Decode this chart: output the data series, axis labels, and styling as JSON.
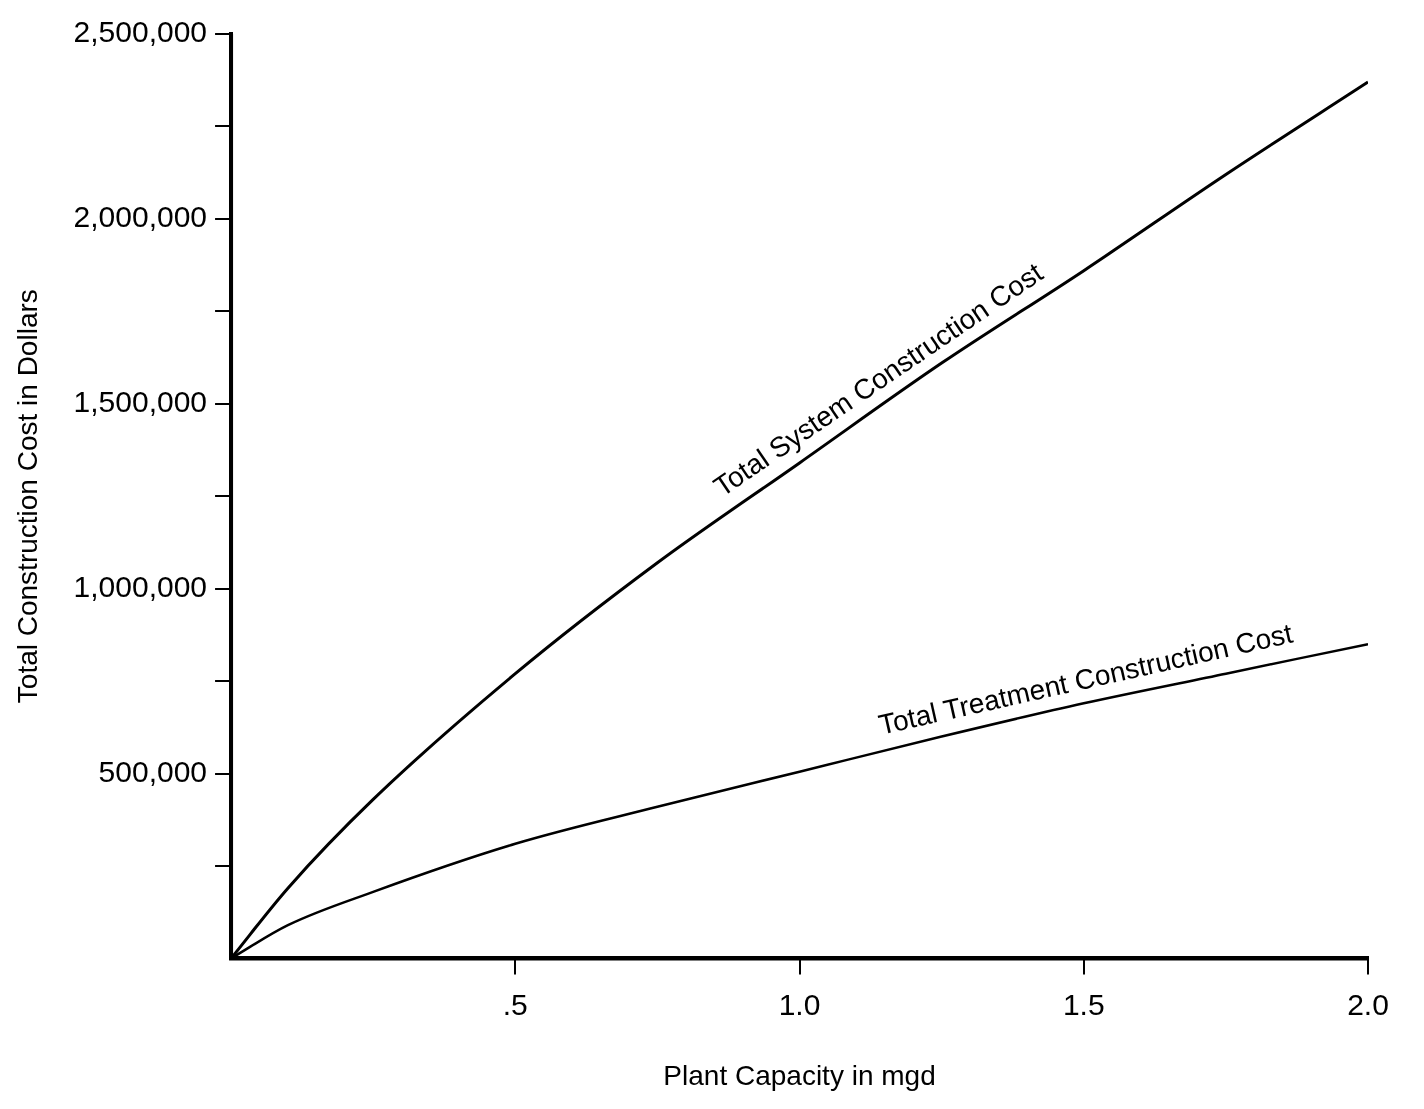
{
  "chart_data": {
    "type": "line",
    "xlabel": "Plant Capacity in mgd",
    "ylabel": "Total Construction Cost in Dollars",
    "x": [
      0,
      0.1,
      0.25,
      0.5,
      0.75,
      1.0,
      1.25,
      1.5,
      1.75,
      2.0
    ],
    "series": [
      {
        "name": "Total System Construction Cost",
        "color": "#000000",
        "values": [
          0,
          190000,
          430000,
          770000,
          1070000,
          1340000,
          1610000,
          1860000,
          2120000,
          2370000
        ]
      },
      {
        "name": "Total Treatment Construction Cost",
        "color": "#000000",
        "values": [
          0,
          90000,
          180000,
          310000,
          410000,
          505000,
          600000,
          690000,
          770000,
          850000
        ]
      }
    ],
    "xlim": [
      0,
      2.0
    ],
    "xticks": [
      {
        "value": 0.5,
        "label": ".5"
      },
      {
        "value": 1.0,
        "label": "1.0"
      },
      {
        "value": 1.5,
        "label": "1.5"
      },
      {
        "value": 2.0,
        "label": "2.0"
      }
    ],
    "ylim": [
      0,
      2500000
    ],
    "yticks": [
      {
        "value": 250000,
        "label": null
      },
      {
        "value": 500000,
        "label": "500,000"
      },
      {
        "value": 750000,
        "label": null
      },
      {
        "value": 1000000,
        "label": "1,000,000"
      },
      {
        "value": 1250000,
        "label": null
      },
      {
        "value": 1500000,
        "label": "1,500,000"
      },
      {
        "value": 1750000,
        "label": null
      },
      {
        "value": 2000000,
        "label": "2,000,000"
      },
      {
        "value": 2250000,
        "label": null
      },
      {
        "value": 2500000,
        "label": "2,500,000"
      }
    ],
    "grid": false,
    "legend": false,
    "marker": "none",
    "line_style": "solid"
  }
}
